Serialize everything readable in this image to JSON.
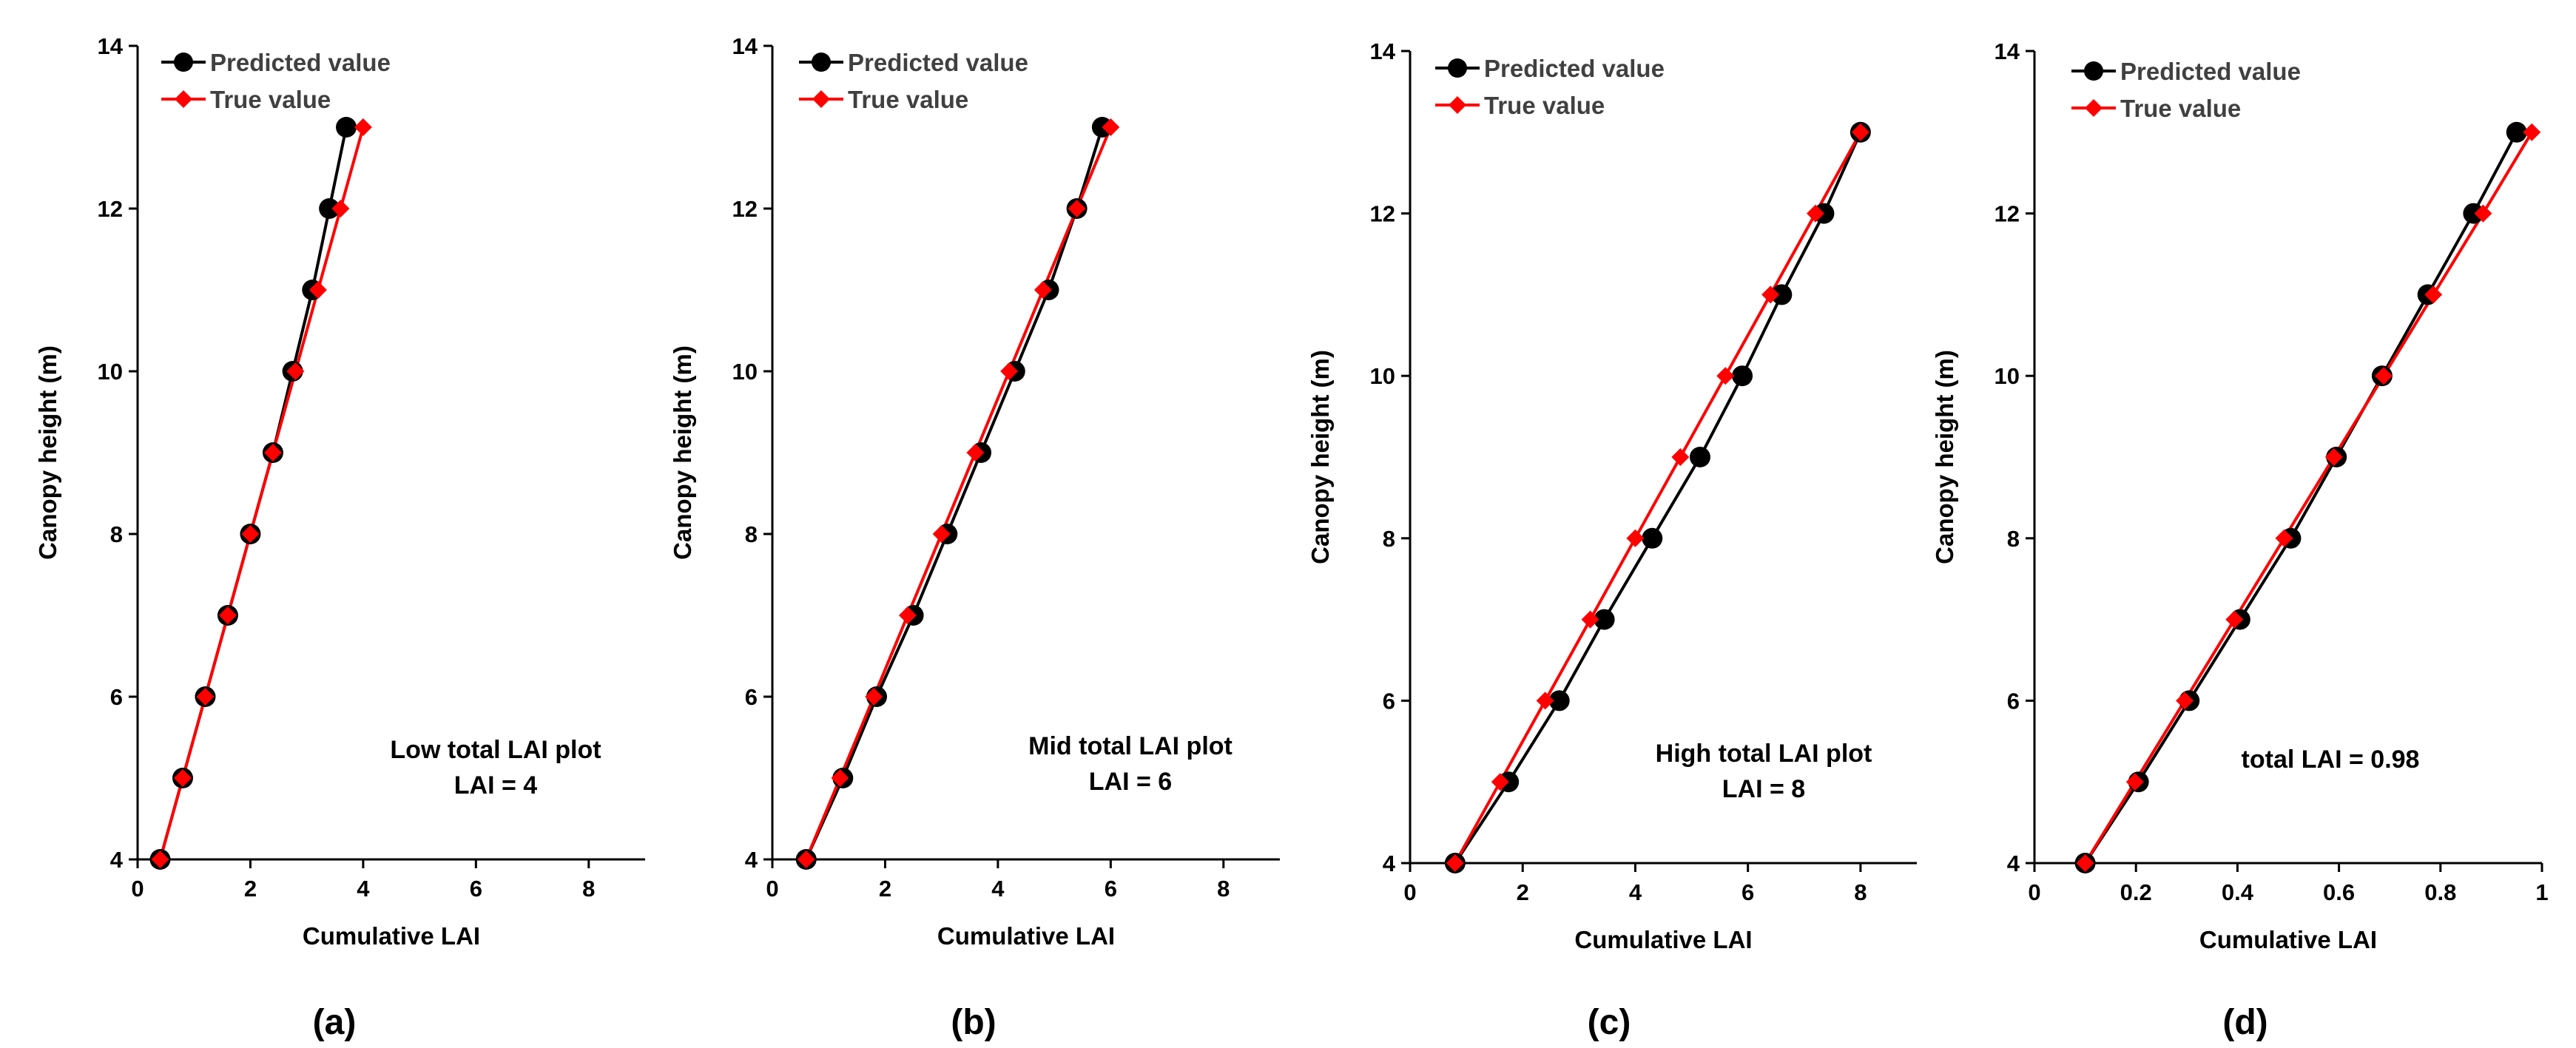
{
  "colors": {
    "predicted": "#000000",
    "true": "#ff0000",
    "axis": "#000000"
  },
  "chart_data": [
    {
      "type": "line",
      "panel_label": "(a)",
      "xlabel": "Cumulative LAI",
      "ylabel": "Canopy height (m)",
      "xlim": [
        0,
        9
      ],
      "ylim": [
        4,
        14
      ],
      "xticks": [
        0,
        2,
        4,
        6,
        8
      ],
      "yticks": [
        4,
        6,
        8,
        10,
        12,
        14
      ],
      "xtick_labels": [
        "0",
        "2",
        "4",
        "6",
        "8"
      ],
      "ytick_labels": [
        "4",
        "6",
        "8",
        "10",
        "12",
        "14"
      ],
      "legend": [
        "Predicted value",
        "True value"
      ],
      "annotation": [
        "Low total LAI plot",
        "LAI = 4"
      ],
      "series": [
        {
          "name": "Predicted value",
          "marker": "circle",
          "color": "#000000",
          "points": [
            [
              0.4,
              4
            ],
            [
              0.8,
              5
            ],
            [
              1.2,
              6
            ],
            [
              1.6,
              7
            ],
            [
              2.0,
              8
            ],
            [
              2.4,
              9
            ],
            [
              2.75,
              10
            ],
            [
              3.1,
              11
            ],
            [
              3.4,
              12
            ],
            [
              3.7,
              13
            ]
          ]
        },
        {
          "name": "True value",
          "marker": "diamond",
          "color": "#ff0000",
          "points": [
            [
              0.4,
              4
            ],
            [
              0.8,
              5
            ],
            [
              1.2,
              6
            ],
            [
              1.6,
              7
            ],
            [
              2.0,
              8
            ],
            [
              2.4,
              9
            ],
            [
              2.8,
              10
            ],
            [
              3.2,
              11
            ],
            [
              3.6,
              12
            ],
            [
              4.0,
              13
            ]
          ]
        }
      ]
    },
    {
      "type": "line",
      "panel_label": "(b)",
      "xlabel": "Cumulative LAI",
      "ylabel": "Canopy height (m)",
      "xlim": [
        0,
        9
      ],
      "ylim": [
        4,
        14
      ],
      "xticks": [
        0,
        2,
        4,
        6,
        8
      ],
      "yticks": [
        4,
        6,
        8,
        10,
        12,
        14
      ],
      "xtick_labels": [
        "0",
        "2",
        "4",
        "6",
        "8"
      ],
      "ytick_labels": [
        "4",
        "6",
        "8",
        "10",
        "12",
        "14"
      ],
      "legend": [
        "Predicted value",
        "True value"
      ],
      "annotation": [
        "Mid total LAI plot",
        "LAI = 6"
      ],
      "series": [
        {
          "name": "Predicted value",
          "marker": "circle",
          "color": "#000000",
          "points": [
            [
              0.6,
              4
            ],
            [
              1.25,
              5
            ],
            [
              1.85,
              6
            ],
            [
              2.5,
              7
            ],
            [
              3.1,
              8
            ],
            [
              3.7,
              9
            ],
            [
              4.3,
              10
            ],
            [
              4.9,
              11
            ],
            [
              5.4,
              12
            ],
            [
              5.85,
              13
            ]
          ]
        },
        {
          "name": "True value",
          "marker": "diamond",
          "color": "#ff0000",
          "points": [
            [
              0.6,
              4
            ],
            [
              1.2,
              5
            ],
            [
              1.8,
              6
            ],
            [
              2.4,
              7
            ],
            [
              3.0,
              8
            ],
            [
              3.6,
              9
            ],
            [
              4.2,
              10
            ],
            [
              4.8,
              11
            ],
            [
              5.4,
              12
            ],
            [
              6.0,
              13
            ]
          ]
        }
      ]
    },
    {
      "type": "line",
      "panel_label": "(c)",
      "xlabel": "Cumulative LAI",
      "ylabel": "Canopy height (m)",
      "xlim": [
        0,
        9
      ],
      "ylim": [
        4,
        14
      ],
      "xticks": [
        0,
        2,
        4,
        6,
        8
      ],
      "yticks": [
        4,
        6,
        8,
        10,
        12,
        14
      ],
      "xtick_labels": [
        "0",
        "2",
        "4",
        "6",
        "8"
      ],
      "ytick_labels": [
        "4",
        "6",
        "8",
        "10",
        "12",
        "14"
      ],
      "legend": [
        "Predicted value",
        "True value"
      ],
      "annotation": [
        "High total LAI plot",
        "LAI = 8"
      ],
      "series": [
        {
          "name": "Predicted value",
          "marker": "circle",
          "color": "#000000",
          "points": [
            [
              0.8,
              4
            ],
            [
              1.75,
              5
            ],
            [
              2.65,
              6
            ],
            [
              3.45,
              7
            ],
            [
              4.3,
              8
            ],
            [
              5.15,
              9
            ],
            [
              5.9,
              10
            ],
            [
              6.6,
              11
            ],
            [
              7.35,
              12
            ],
            [
              8.0,
              13
            ]
          ]
        },
        {
          "name": "True value",
          "marker": "diamond",
          "color": "#ff0000",
          "points": [
            [
              0.8,
              4
            ],
            [
              1.6,
              5
            ],
            [
              2.4,
              6
            ],
            [
              3.2,
              7
            ],
            [
              4.0,
              8
            ],
            [
              4.8,
              9
            ],
            [
              5.6,
              10
            ],
            [
              6.4,
              11
            ],
            [
              7.2,
              12
            ],
            [
              8.0,
              13
            ]
          ]
        }
      ]
    },
    {
      "type": "line",
      "panel_label": "(d)",
      "xlabel": "Cumulative LAI",
      "ylabel": "Canopy height (m)",
      "xlim": [
        0,
        1
      ],
      "ylim": [
        4,
        14
      ],
      "xticks": [
        0,
        0.2,
        0.4,
        0.6,
        0.8,
        1
      ],
      "yticks": [
        4,
        6,
        8,
        10,
        12,
        14
      ],
      "xtick_labels": [
        "0",
        "0.2",
        "0.4",
        "0.6",
        "0.8",
        "1"
      ],
      "ytick_labels": [
        "4",
        "6",
        "8",
        "10",
        "12",
        "14"
      ],
      "legend": [
        "Predicted value",
        "True value"
      ],
      "annotation": [
        "total LAI = 0.98"
      ],
      "series": [
        {
          "name": "Predicted value",
          "marker": "circle",
          "color": "#000000",
          "points": [
            [
              0.1,
              4
            ],
            [
              0.205,
              5
            ],
            [
              0.305,
              6
            ],
            [
              0.405,
              7
            ],
            [
              0.505,
              8
            ],
            [
              0.595,
              9
            ],
            [
              0.685,
              10
            ],
            [
              0.775,
              11
            ],
            [
              0.865,
              12
            ],
            [
              0.95,
              13
            ]
          ]
        },
        {
          "name": "True value",
          "marker": "diamond",
          "color": "#ff0000",
          "points": [
            [
              0.1,
              4
            ],
            [
              0.198,
              5
            ],
            [
              0.296,
              6
            ],
            [
              0.394,
              7
            ],
            [
              0.492,
              8
            ],
            [
              0.59,
              9
            ],
            [
              0.688,
              10
            ],
            [
              0.786,
              11
            ],
            [
              0.884,
              12
            ],
            [
              0.98,
              13
            ]
          ]
        }
      ]
    }
  ]
}
